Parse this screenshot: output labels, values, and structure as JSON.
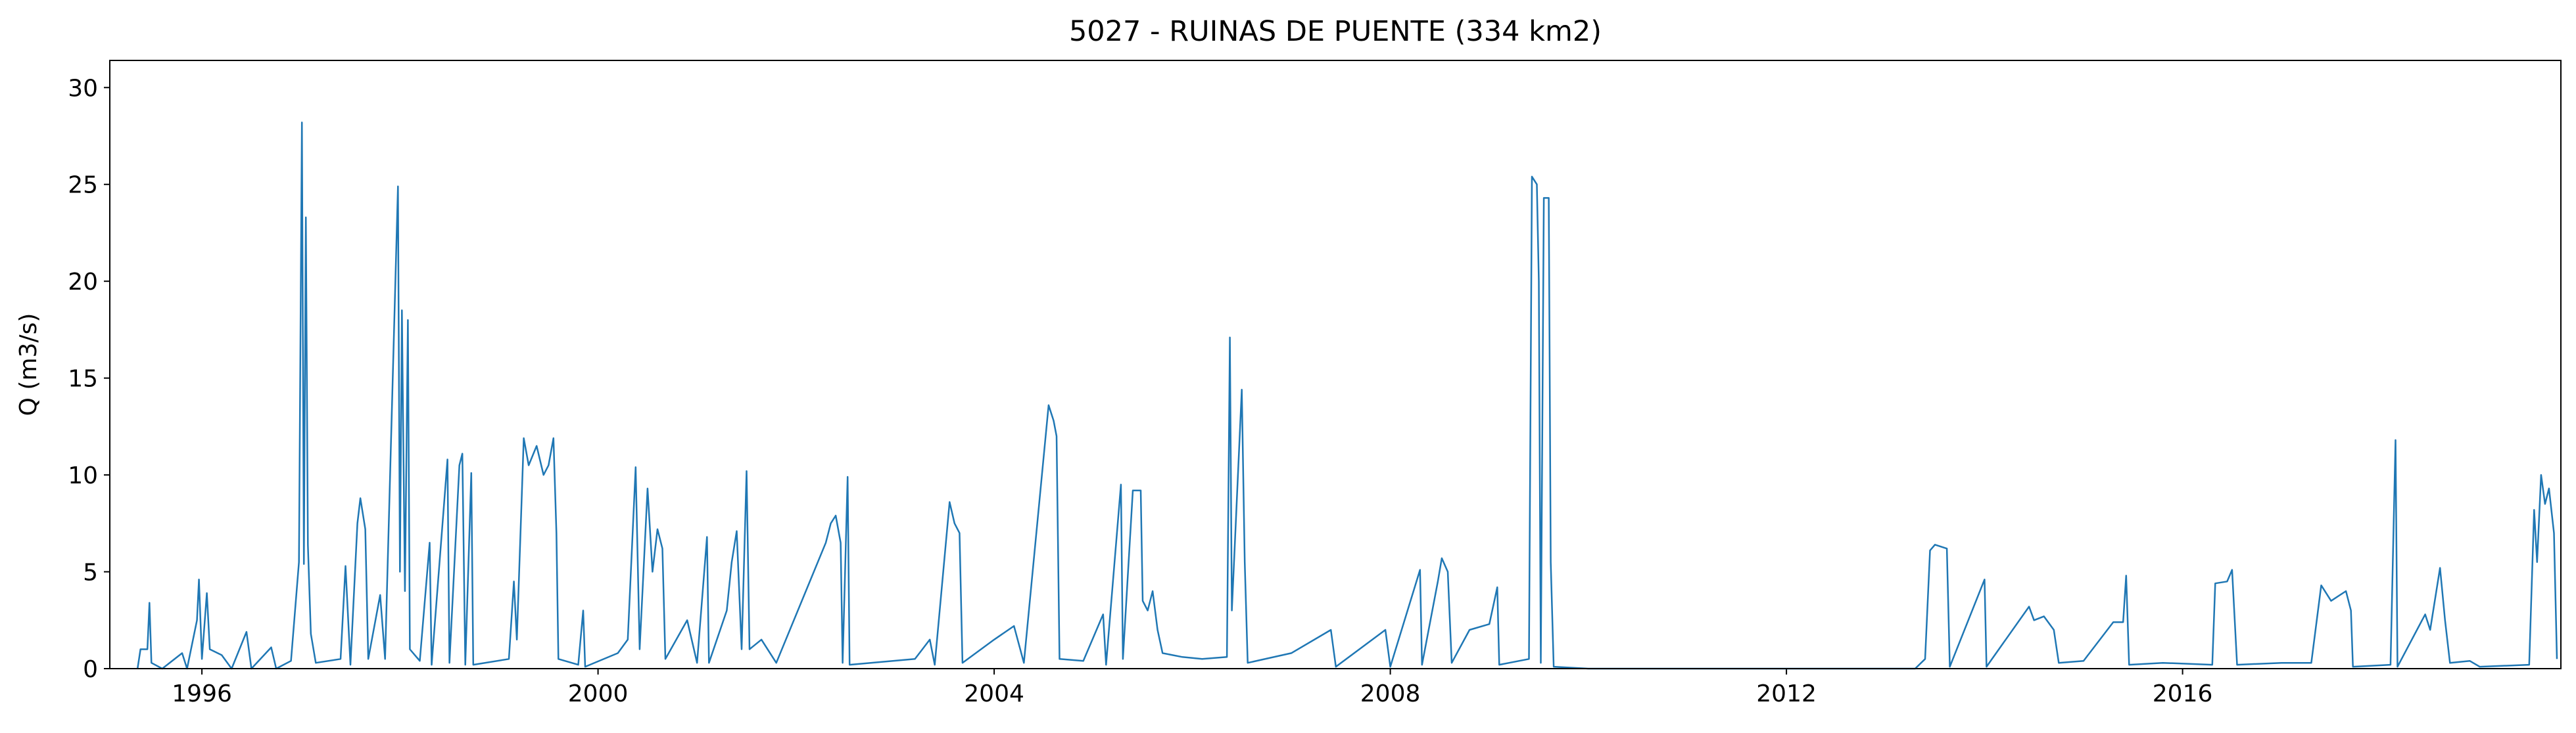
{
  "chart_data": {
    "type": "line",
    "title": "5027 - RUINAS DE PUENTE (334 km2)",
    "y_label": "Q (m3/s)",
    "x": [
      1995.35,
      1995.38,
      1995.45,
      1995.47,
      1995.49,
      1995.6,
      1995.8,
      1995.85,
      1995.95,
      1995.97,
      1996.0,
      1996.05,
      1996.08,
      1996.2,
      1996.3,
      1996.45,
      1996.5,
      1996.7,
      1996.75,
      1996.9,
      1996.98,
      1997.01,
      1997.03,
      1997.05,
      1997.07,
      1997.1,
      1997.15,
      1997.4,
      1997.45,
      1997.5,
      1997.57,
      1997.6,
      1997.65,
      1997.68,
      1997.8,
      1997.85,
      1997.98,
      1998.0,
      1998.02,
      1998.05,
      1998.08,
      1998.1,
      1998.2,
      1998.3,
      1998.32,
      1998.48,
      1998.5,
      1998.6,
      1998.63,
      1998.66,
      1998.72,
      1998.74,
      1999.1,
      1999.15,
      1999.18,
      1999.25,
      1999.3,
      1999.38,
      1999.45,
      1999.5,
      1999.55,
      1999.58,
      1999.6,
      1999.8,
      1999.85,
      1999.87,
      2000.2,
      2000.3,
      2000.38,
      2000.42,
      2000.5,
      2000.55,
      2000.6,
      2000.65,
      2000.68,
      2000.9,
      2001.0,
      2001.1,
      2001.12,
      2001.3,
      2001.35,
      2001.4,
      2001.45,
      2001.5,
      2001.53,
      2001.65,
      2001.8,
      2002.3,
      2002.35,
      2002.4,
      2002.45,
      2002.47,
      2002.52,
      2002.54,
      2003.2,
      2003.35,
      2003.4,
      2003.55,
      2003.6,
      2003.65,
      2003.68,
      2004.0,
      2004.2,
      2004.3,
      2004.55,
      2004.6,
      2004.63,
      2004.66,
      2004.9,
      2005.1,
      2005.13,
      2005.28,
      2005.3,
      2005.4,
      2005.48,
      2005.5,
      2005.55,
      2005.6,
      2005.65,
      2005.7,
      2005.9,
      2006.1,
      2006.35,
      2006.38,
      2006.4,
      2006.5,
      2006.53,
      2006.56,
      2007.0,
      2007.4,
      2007.45,
      2007.95,
      2008.0,
      2008.3,
      2008.32,
      2008.48,
      2008.52,
      2008.58,
      2008.62,
      2008.8,
      2009.0,
      2009.08,
      2009.1,
      2009.4,
      2009.43,
      2009.48,
      2009.5,
      2009.52,
      2009.55,
      2009.6,
      2009.62,
      2009.65,
      2010.0,
      2013.3,
      2013.4,
      2013.45,
      2013.5,
      2013.62,
      2013.65,
      2014.0,
      2014.02,
      2014.45,
      2014.5,
      2014.6,
      2014.7,
      2014.75,
      2015.0,
      2015.3,
      2015.4,
      2015.43,
      2015.46,
      2015.8,
      2016.3,
      2016.33,
      2016.45,
      2016.5,
      2016.55,
      2017.0,
      2017.3,
      2017.4,
      2017.5,
      2017.65,
      2017.7,
      2017.72,
      2018.1,
      2018.15,
      2018.17,
      2018.45,
      2018.5,
      2018.6,
      2018.65,
      2018.7,
      2018.9,
      2019.0,
      2019.5,
      2019.55,
      2019.58,
      2019.62,
      2019.66,
      2019.7,
      2019.75,
      2019.78
    ],
    "series": [
      {
        "color": "#1f77b4",
        "values": [
          0,
          1.0,
          1.0,
          3.4,
          0.3,
          0,
          0.8,
          0,
          2.5,
          4.6,
          0.5,
          3.9,
          1,
          0.7,
          0,
          1.9,
          0,
          1.1,
          0,
          0.4,
          5.5,
          28.2,
          5.4,
          23.3,
          6.4,
          1.8,
          0.3,
          0.5,
          5.3,
          0.2,
          7.5,
          8.8,
          7.2,
          0.5,
          3.8,
          0.5,
          24.9,
          5,
          18.5,
          4,
          18.0,
          1,
          0.4,
          6.5,
          0.2,
          10.8,
          0.3,
          10.5,
          11.1,
          0.2,
          10.1,
          0.2,
          0.5,
          4.5,
          1.5,
          11.9,
          10.5,
          11.5,
          10.0,
          10.5,
          11.9,
          7.0,
          0.5,
          0.2,
          3.0,
          0.1,
          0.8,
          1.5,
          10.4,
          1,
          9.3,
          5,
          7.2,
          6.2,
          0.5,
          2.5,
          0.3,
          6.8,
          0.3,
          3,
          5.5,
          7.1,
          1,
          10.2,
          1,
          1.5,
          0.3,
          6.5,
          7.5,
          7.9,
          6.5,
          0.3,
          9.9,
          0.2,
          0.5,
          1.5,
          0.2,
          8.6,
          7.5,
          7,
          0.3,
          1.5,
          2.2,
          0.3,
          13.6,
          12.8,
          12,
          0.5,
          0.4,
          2.8,
          0.2,
          9.5,
          0.5,
          9.2,
          9.2,
          3.5,
          3,
          4,
          2,
          0.8,
          0.6,
          0.5,
          0.6,
          17.1,
          3,
          14.4,
          5.5,
          0.3,
          0.8,
          2,
          0.1,
          2,
          0.1,
          5.1,
          0.2,
          4.5,
          5.7,
          5.0,
          0.3,
          2,
          2.3,
          4.2,
          0.2,
          0.5,
          25.4,
          25.0,
          20,
          0.3,
          24.3,
          24.3,
          5.5,
          0.1,
          0,
          0,
          0.5,
          6.1,
          6.4,
          6.2,
          0.1,
          4.6,
          0.1,
          3.2,
          2.5,
          2.7,
          2,
          0.3,
          0.4,
          2.4,
          2.4,
          4.8,
          0.2,
          0.3,
          0.2,
          4.4,
          4.5,
          5.1,
          0.2,
          0.3,
          0.3,
          4.3,
          3.5,
          4,
          3,
          0.1,
          0.2,
          11.8,
          0.1,
          2.8,
          2,
          5.2,
          2.5,
          0.3,
          0.4,
          0.1,
          0.2,
          8.2,
          5.5,
          10.0,
          8.5,
          9.3,
          7,
          0.5
        ]
      }
    ],
    "xlim": [
      1995.07,
      2019.82
    ],
    "xticks": [
      1996,
      2000,
      2004,
      2008,
      2012,
      2016
    ],
    "ylim": [
      0,
      31.4
    ],
    "yticks": [
      0,
      5,
      10,
      15,
      20,
      25,
      30
    ]
  }
}
